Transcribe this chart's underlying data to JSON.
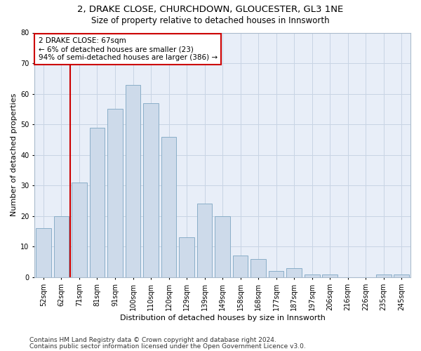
{
  "title1": "2, DRAKE CLOSE, CHURCHDOWN, GLOUCESTER, GL3 1NE",
  "title2": "Size of property relative to detached houses in Innsworth",
  "xlabel": "Distribution of detached houses by size in Innsworth",
  "ylabel": "Number of detached properties",
  "bar_labels": [
    "52sqm",
    "62sqm",
    "71sqm",
    "81sqm",
    "91sqm",
    "100sqm",
    "110sqm",
    "120sqm",
    "129sqm",
    "139sqm",
    "149sqm",
    "158sqm",
    "168sqm",
    "177sqm",
    "187sqm",
    "197sqm",
    "206sqm",
    "216sqm",
    "226sqm",
    "235sqm",
    "245sqm"
  ],
  "bar_heights": [
    16,
    20,
    31,
    49,
    55,
    63,
    57,
    46,
    13,
    24,
    20,
    7,
    6,
    2,
    3,
    1,
    1,
    0,
    0,
    1,
    1
  ],
  "bar_color": "#cddaea",
  "bar_edge_color": "#8aaec8",
  "vline_color": "#cc0000",
  "vline_x_index": 1.5,
  "annotation_line1": "2 DRAKE CLOSE: 67sqm",
  "annotation_line2": "← 6% of detached houses are smaller (23)",
  "annotation_line3": "94% of semi-detached houses are larger (386) →",
  "annotation_box_facecolor": "#ffffff",
  "annotation_box_edgecolor": "#cc0000",
  "ylim": [
    0,
    80
  ],
  "yticks": [
    0,
    10,
    20,
    30,
    40,
    50,
    60,
    70,
    80
  ],
  "grid_color": "#c8d4e4",
  "background_color": "#e8eef8",
  "footer1": "Contains HM Land Registry data © Crown copyright and database right 2024.",
  "footer2": "Contains public sector information licensed under the Open Government Licence v3.0.",
  "title1_fontsize": 9.5,
  "title2_fontsize": 8.5,
  "xlabel_fontsize": 8,
  "ylabel_fontsize": 8,
  "tick_fontsize": 7,
  "annotation_fontsize": 7.5,
  "footer_fontsize": 6.5
}
